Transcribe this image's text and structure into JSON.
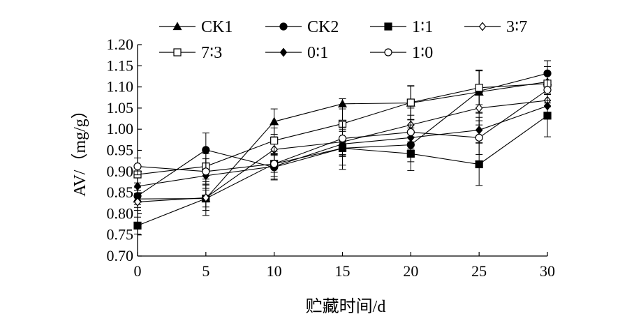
{
  "chart_data": {
    "type": "line",
    "xlabel": "贮藏时间/d",
    "ylabel": "AV/（mg/g）",
    "x": [
      0,
      5,
      10,
      15,
      20,
      25,
      30
    ],
    "xticks": [
      "0",
      "5",
      "10",
      "15",
      "20",
      "25",
      "30"
    ],
    "xlim": [
      0,
      30
    ],
    "yticks": [
      "0.70",
      "0.75",
      "0.80",
      "0.85",
      "0.90",
      "0.95",
      "1.00",
      "1.05",
      "1.10",
      "1.15",
      "1.20"
    ],
    "ylim": [
      0.7,
      1.2
    ],
    "grid": false,
    "legend_position": "top",
    "series": [
      {
        "name": "CK1",
        "marker": "triangle-filled",
        "values": [
          0.835,
          0.836,
          1.018,
          1.06,
          1.062,
          1.088,
          1.112
        ],
        "errors": [
          0.02,
          0.02,
          0.03,
          0.012,
          0.04,
          0.05,
          0.05
        ]
      },
      {
        "name": "CK2",
        "marker": "circle-filled",
        "values": [
          0.842,
          0.951,
          0.91,
          0.955,
          0.963,
          1.09,
          1.132
        ],
        "errors": [
          0.02,
          0.04,
          0.03,
          0.04,
          0.04,
          0.05,
          0.03
        ]
      },
      {
        "name": "1∶1",
        "marker": "square-filled",
        "values": [
          0.772,
          0.836,
          0.918,
          0.955,
          0.942,
          0.917,
          1.032
        ],
        "errors": [
          0.02,
          0.04,
          0.02,
          0.05,
          0.04,
          0.05,
          0.05
        ]
      },
      {
        "name": "3∶7",
        "marker": "diamond-open",
        "values": [
          0.828,
          0.838,
          0.952,
          0.97,
          1.01,
          1.05,
          1.068
        ],
        "errors": [
          0.02,
          0.03,
          0.03,
          0.03,
          0.04,
          0.04,
          0.04
        ]
      },
      {
        "name": "7∶3",
        "marker": "square-open",
        "values": [
          0.893,
          0.912,
          0.973,
          1.013,
          1.063,
          1.098,
          1.108
        ],
        "errors": [
          0.02,
          0.03,
          0.03,
          0.04,
          0.04,
          0.04,
          0.04
        ]
      },
      {
        "name": "0∶1",
        "marker": "diamond-filled",
        "values": [
          0.865,
          0.89,
          0.912,
          0.965,
          0.98,
          0.998,
          1.055
        ],
        "errors": [
          0.02,
          0.03,
          0.03,
          0.03,
          0.03,
          0.03,
          0.03
        ]
      },
      {
        "name": "1∶0",
        "marker": "circle-open",
        "values": [
          0.912,
          0.9,
          0.918,
          0.978,
          0.993,
          0.98,
          1.093
        ],
        "errors": [
          0.02,
          0.03,
          0.03,
          0.04,
          0.04,
          0.04,
          0.04
        ]
      }
    ]
  }
}
